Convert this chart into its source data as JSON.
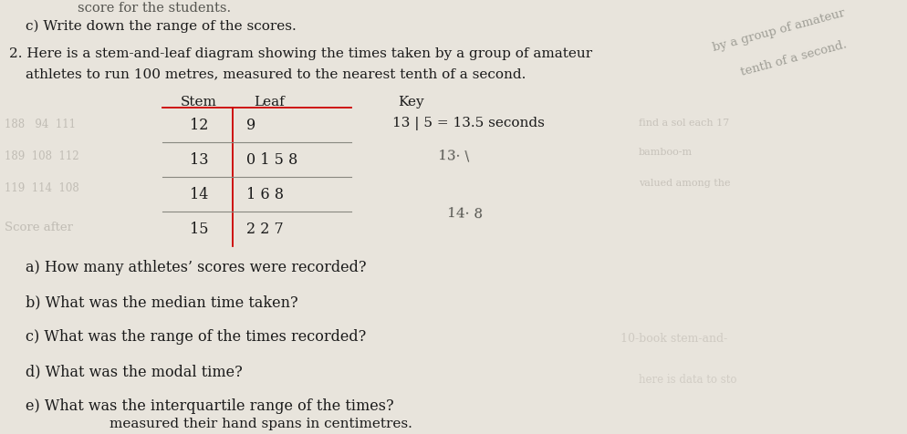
{
  "background_color": "#e8e4dc",
  "top_partial": "score for the students.",
  "line_c": "c) Write down the range of the scores.",
  "q2_line1": "2. Here is a stem-and-leaf diagram showing the times taken by a group of amateur",
  "q2_line2": "   athletes to run 100 metres, measured to the nearest tenth of a second.",
  "stem_header": "Stem",
  "leaf_header": "Leaf",
  "key_header": "Key",
  "key_text": "13 | 5 = 13.5 seconds",
  "stems": [
    "12",
    "13",
    "14",
    "15"
  ],
  "leaves": [
    "9",
    "0 1 5 8",
    "1 6 8",
    "2 2 7"
  ],
  "annot1_text": "13· \\",
  "annot2_text": "14· 8",
  "ghost_right_top1": "by a group of amateur",
  "ghost_right_top2": "tenth of a second.",
  "ghost_left_mid1": "188   94  111",
  "ghost_left_mid2": "189  108  112",
  "ghost_left_mid3": "119  114  108",
  "ghost_score_after": "Score after",
  "ghost_right_mid1": "find a sol each 17",
  "ghost_right_mid2": "bamboo-m",
  "ghost_right_mid3": "valued among the",
  "ghost_right_bot1": "10-book stem-and-",
  "ghost_right_bot2": "here is data to sto",
  "sub_questions": [
    "a) How many athletes’ scores were recorded?",
    "b) What was the median time taken?",
    "c) What was the range of the times recorded?",
    "d) What was the modal time?",
    "e) What was the interquartile range of the times?"
  ],
  "bottom_text": "measured their hand spans in centimetres."
}
